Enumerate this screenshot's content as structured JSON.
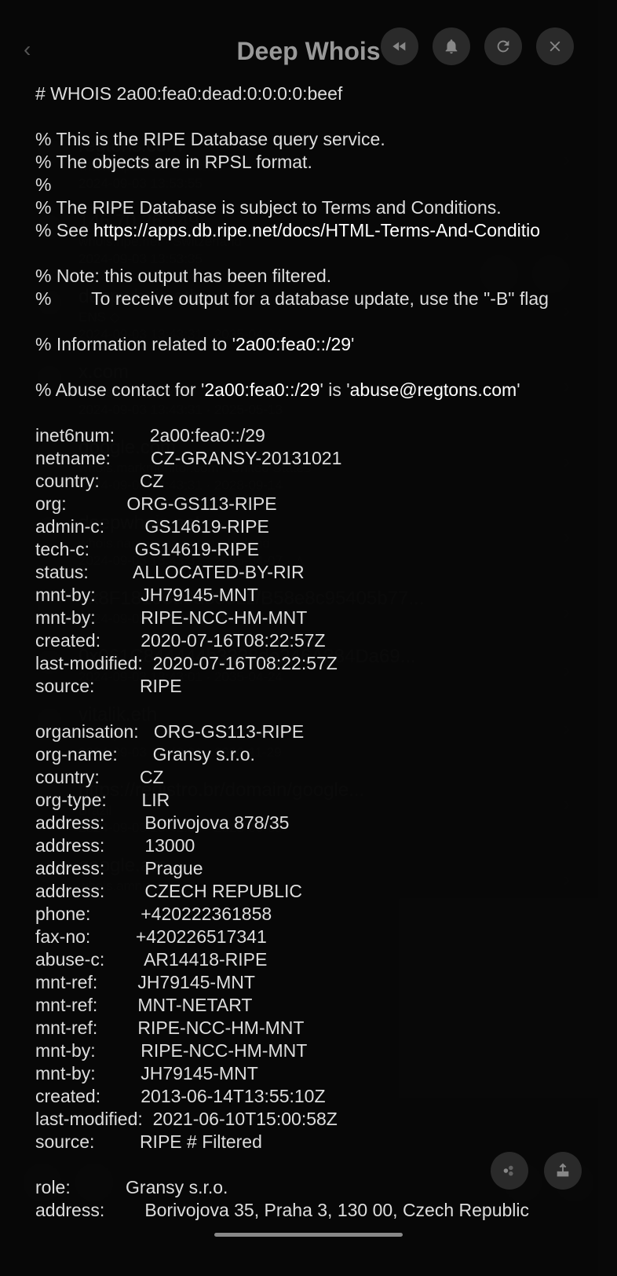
{
  "header": {
    "title": "Deep Whois"
  },
  "bg_items": [
    {
      "title": "regtons.com",
      "sub": "whois.ripe.net · Czechia",
      "date": "2024-09-03 13:53:55"
    },
    {
      "title": "146.70.26.149",
      "sub": "whois.ripe.net · Switzerland",
      "date": "2024-09-03 13:53:35"
    },
    {
      "title": "deepwhois.eth",
      "sub": "ENS ◇",
      "date": "2024-09-03 13:43:31 · 2035-04-24"
    },
    {
      "title": "x.com",
      "sub": "whois.godaddy.com · United States",
      "date": "2024-09-03 13:43:31 · 2025-05-13"
    },
    {
      "title": "google.com",
      "sub": "whois.markmonitor.com · United States",
      "date": "2024-09-03 13:43:31 · 2028-09-14"
    },
    {
      "title": "deepwhois.net",
      "sub": "whois.namecheap.com · Iceland",
      "date": "2024-09-03 13:43:31 · 2025-04-07 · △"
    },
    {
      "title": "0x8F18193d0d333Lz/B58e8c95405b77...",
      "sub": "",
      "date": "2024-09-03 13:43:02 · 2030-04-25"
    },
    {
      "title": "0x061C844444b3338de246A384Da69...",
      "sub": "",
      "date": "2024-09-03 13:43:01 · 2035-04-24"
    },
    {
      "title": "vitalik.eth",
      "sub": "ENS ◇",
      "date": "2024-09-03 13:43:01 · 2030-11-29"
    },
    {
      "title": "https://registro.br/domain/google...",
      "sub": "Brazil",
      "date": "2024-09-03 13:42:54 · 2025-09-09"
    },
    {
      "title": "google.am",
      "sub": "whois.amnic.net",
      "date": ""
    }
  ],
  "whois": {
    "header": "# WHOIS 2a00:fea0:dead:0:0:0:0:beef",
    "comment1": "% This is the RIPE Database query service.",
    "comment2": "% The objects are in RPSL format.",
    "comment3": "%",
    "comment4": "% The RIPE Database is subject to Terms and Conditions.",
    "comment5_pre": "% See ",
    "comment5_link": "https://apps.db.ripe.net/docs/HTML-Terms-And-Conditio",
    "comment6": "% Note: this output has been filtered.",
    "comment7": "%        To receive output for a database update, use the \"-B\" flag",
    "comment8_pre": "% Information related to '",
    "comment8_bold": "2a00:fea0::/29",
    "comment8_post": "'",
    "comment9_pre": "% Abuse contact for '",
    "comment9_bold1": "2a00:fea0::/29",
    "comment9_mid": "' is '",
    "comment9_bold2": "abuse@regtons.com",
    "comment9_post": "'",
    "inet6num": "2a00:fea0::/29",
    "netname": "CZ-GRANSY-20131021",
    "country": "CZ",
    "org": "ORG-GS113-RIPE",
    "adminc": "GS14619-RIPE",
    "techc": "GS14619-RIPE",
    "status": "ALLOCATED-BY-RIR",
    "mntby1": "JH79145-MNT",
    "mntby2": "RIPE-NCC-HM-MNT",
    "created": "2020-07-16T08:22:57Z",
    "lastmod": "2020-07-16T08:22:57Z",
    "source": "RIPE",
    "org_organisation": "ORG-GS113-RIPE",
    "org_name": "Gransy s.r.o.",
    "org_country": "CZ",
    "org_type": "LIR",
    "org_addr1": "Borivojova 878/35",
    "org_addr2": "13000",
    "org_addr3": "Prague",
    "org_addr4": "CZECH REPUBLIC",
    "org_phone": "+420222361858",
    "org_fax": "+420226517341",
    "org_abusec": "AR14418-RIPE",
    "org_mntref1": "JH79145-MNT",
    "org_mntref2": "MNT-NETART",
    "org_mntref3": "RIPE-NCC-HM-MNT",
    "org_mntby1": "RIPE-NCC-HM-MNT",
    "org_mntby2": "JH79145-MNT",
    "org_created": "2013-06-14T13:55:10Z",
    "org_lastmod": "2021-06-10T15:00:58Z",
    "org_source": "RIPE # Filtered",
    "role_name": "Gransy s.r.o.",
    "role_addr": "Borivojova 35, Praha 3, 130 00, Czech Republic"
  }
}
